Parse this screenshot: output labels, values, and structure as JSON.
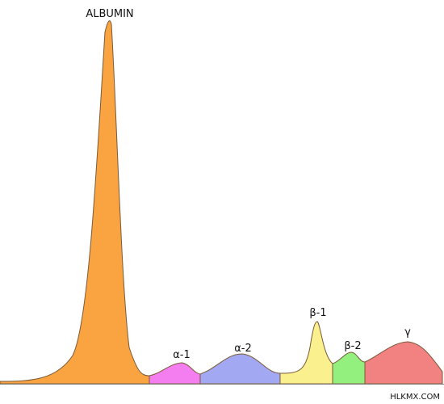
{
  "fractions": [
    {
      "label": "ALBUMIN"
    },
    {
      "label": "α-1"
    },
    {
      "label": "α-2"
    },
    {
      "label": "β-1"
    },
    {
      "label": "β-2"
    },
    {
      "label": "γ"
    }
  ],
  "watermark": "HLKMX.COM"
}
